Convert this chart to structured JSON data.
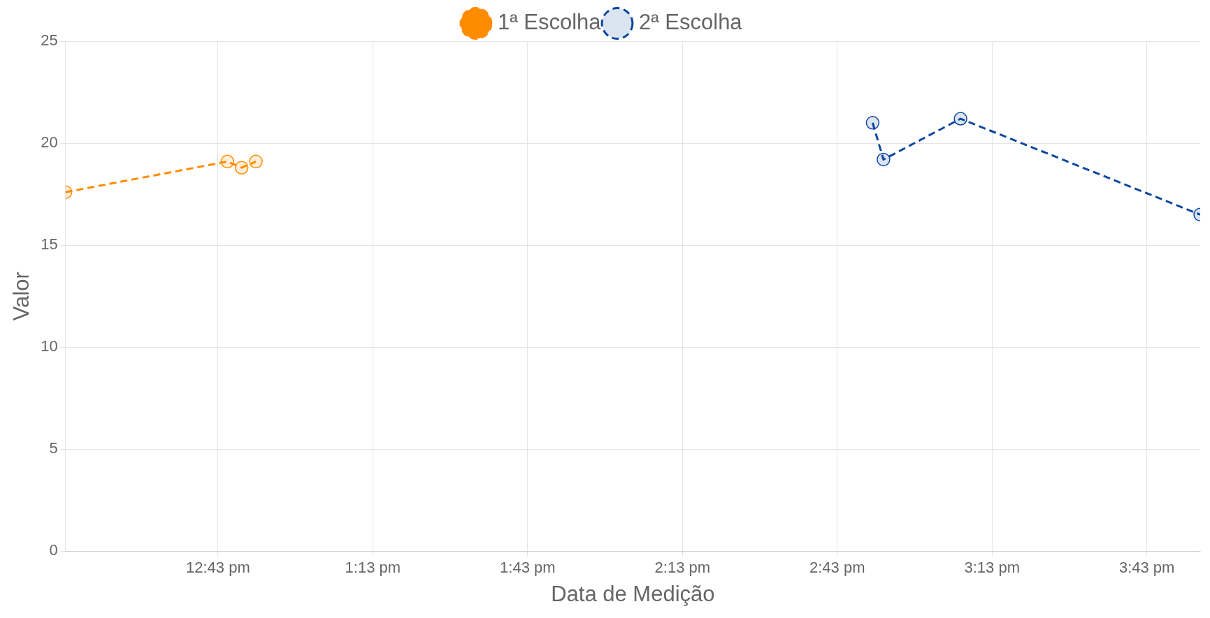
{
  "chart_data": {
    "type": "line",
    "xlabel": "Data de Medição",
    "ylabel": "Valor",
    "series": [
      {
        "name": "1ª Escolha",
        "color": "#ff8c00",
        "x": [
          12.224,
          12.747,
          12.793,
          12.839
        ],
        "values": [
          17.6,
          19.1,
          18.8,
          19.1
        ]
      },
      {
        "name": "2ª Escolha",
        "color": "#0d47a1",
        "x": [
          14.831,
          14.866,
          15.115,
          15.889
        ],
        "values": [
          21.0,
          19.2,
          21.2,
          16.5
        ]
      }
    ],
    "xlim": [
      12.224,
      15.889
    ],
    "xticks": [
      {
        "value": 12.7167,
        "label": "12:43 pm"
      },
      {
        "value": 13.2167,
        "label": "1:13 pm"
      },
      {
        "value": 13.7167,
        "label": "1:43 pm"
      },
      {
        "value": 14.2167,
        "label": "2:13 pm"
      },
      {
        "value": 14.7167,
        "label": "2:43 pm"
      },
      {
        "value": 15.2167,
        "label": "3:13 pm"
      },
      {
        "value": 15.7167,
        "label": "3:43 pm"
      }
    ],
    "ylim": [
      0,
      25
    ],
    "yticks": [
      0,
      5,
      10,
      15,
      20,
      25
    ],
    "grid": true,
    "legend": "top",
    "marker": "circle",
    "line_style": "dashed"
  }
}
